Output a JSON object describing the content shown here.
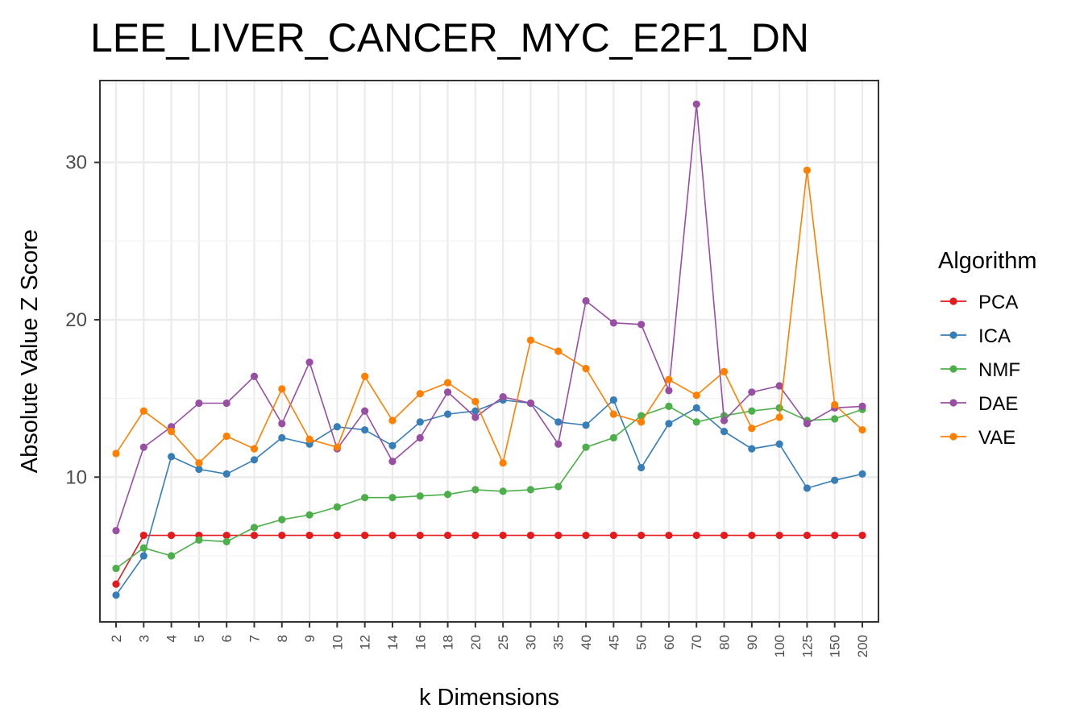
{
  "chart_data": {
    "type": "line",
    "title": "LEE_LIVER_CANCER_MYC_E2F1_DN",
    "xlabel": "k Dimensions",
    "ylabel": "Absolute Value Z Score",
    "categories": [
      "2",
      "3",
      "4",
      "5",
      "6",
      "7",
      "8",
      "9",
      "10",
      "12",
      "14",
      "16",
      "18",
      "20",
      "25",
      "30",
      "35",
      "40",
      "45",
      "50",
      "60",
      "70",
      "80",
      "90",
      "100",
      "125",
      "150",
      "200"
    ],
    "ylim": [
      0.8,
      35.2
    ],
    "yticks": [
      10,
      20,
      30
    ],
    "grid": true,
    "legend_title": "Algorithm",
    "legend_position": "right",
    "series": [
      {
        "name": "PCA",
        "color": "#e41a1c",
        "values": [
          3.2,
          6.3,
          6.3,
          6.3,
          6.3,
          6.3,
          6.3,
          6.3,
          6.3,
          6.3,
          6.3,
          6.3,
          6.3,
          6.3,
          6.3,
          6.3,
          6.3,
          6.3,
          6.3,
          6.3,
          6.3,
          6.3,
          6.3,
          6.3,
          6.3,
          6.3,
          6.3,
          6.3
        ]
      },
      {
        "name": "ICA",
        "color": "#377eb8",
        "values": [
          2.5,
          5.0,
          11.3,
          10.5,
          10.2,
          11.1,
          12.5,
          12.1,
          13.2,
          13.0,
          12.0,
          13.5,
          14.0,
          14.2,
          14.9,
          14.7,
          13.5,
          13.3,
          14.9,
          10.6,
          13.4,
          14.4,
          12.9,
          11.8,
          12.1,
          9.3,
          9.8,
          10.2
        ]
      },
      {
        "name": "NMF",
        "color": "#4daf4a",
        "values": [
          4.2,
          5.5,
          5.0,
          6.0,
          5.9,
          6.8,
          7.3,
          7.6,
          8.1,
          8.7,
          8.7,
          8.8,
          8.9,
          9.2,
          9.1,
          9.2,
          9.4,
          11.9,
          12.5,
          13.9,
          14.5,
          13.5,
          13.9,
          14.2,
          14.4,
          13.6,
          13.7,
          14.3
        ]
      },
      {
        "name": "DAE",
        "color": "#984ea3",
        "values": [
          6.6,
          11.9,
          13.2,
          14.7,
          14.7,
          16.4,
          13.4,
          17.3,
          11.8,
          14.2,
          11.0,
          12.5,
          15.4,
          13.8,
          15.1,
          14.7,
          12.1,
          21.2,
          19.8,
          19.7,
          15.5,
          33.7,
          13.6,
          15.4,
          15.8,
          13.4,
          14.4,
          14.5
        ]
      },
      {
        "name": "VAE",
        "color": "#ff7f00",
        "values": [
          11.5,
          14.2,
          12.9,
          10.9,
          12.6,
          11.8,
          15.6,
          12.4,
          11.9,
          16.4,
          13.6,
          15.3,
          16.0,
          14.8,
          10.9,
          18.7,
          18.0,
          16.9,
          14.0,
          13.5,
          16.2,
          15.2,
          16.7,
          13.1,
          13.8,
          29.5,
          14.6,
          13.0
        ]
      }
    ]
  }
}
